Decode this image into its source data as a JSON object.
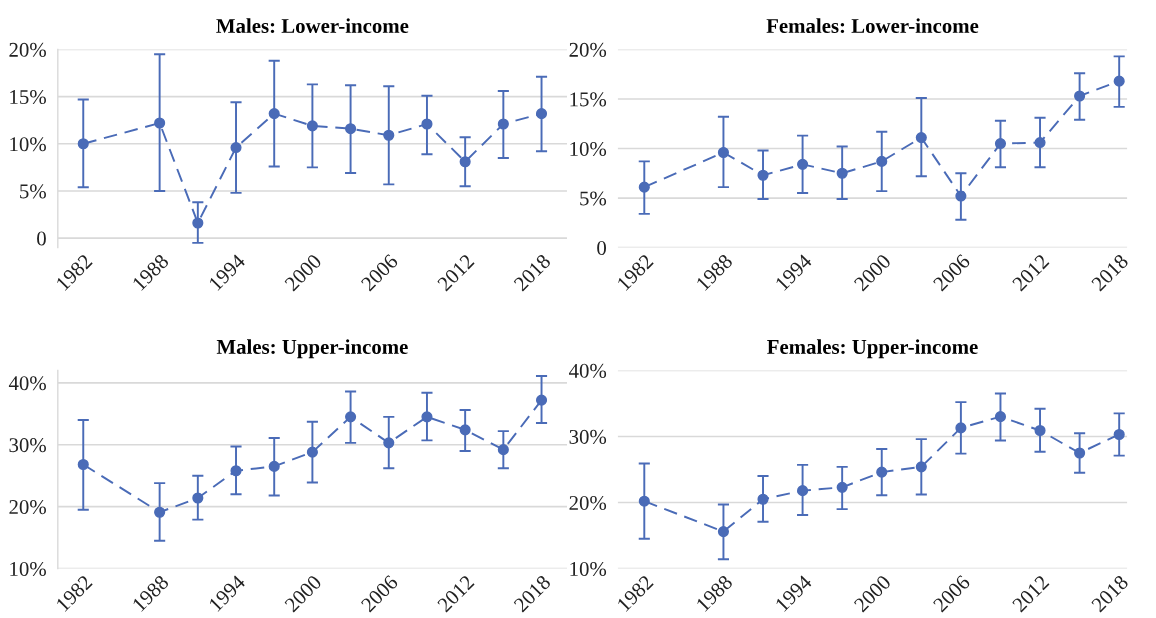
{
  "chart_data": [
    {
      "type": "line",
      "title": "Males: Lower-income",
      "x": [
        1982,
        1988,
        1991,
        1994,
        1997,
        2000,
        2003,
        2006,
        2009,
        2012,
        2015,
        2018
      ],
      "xlim": [
        1980,
        2020
      ],
      "xticks": [
        1982,
        1988,
        1994,
        2000,
        2006,
        2012,
        2018
      ],
      "ylim": [
        -1,
        20
      ],
      "yticks": [
        {
          "value": 0,
          "label": "0"
        },
        {
          "value": 5,
          "label": "5%"
        },
        {
          "value": 10,
          "label": "10%"
        },
        {
          "value": 15,
          "label": "15%"
        },
        {
          "value": 20,
          "label": "20%"
        }
      ],
      "grid": "y",
      "marker": "circle",
      "line_style": "dashed",
      "series": [
        {
          "color": "#4a6bb7",
          "values": [
            10.0,
            12.2,
            1.6,
            9.6,
            13.2,
            11.9,
            11.6,
            10.9,
            12.1,
            8.1,
            12.1,
            13.2
          ],
          "errors": [
            [
              5.4,
              14.7
            ],
            [
              5.0,
              19.5
            ],
            [
              -0.5,
              3.8
            ],
            [
              4.8,
              14.4
            ],
            [
              7.6,
              18.8
            ],
            [
              7.5,
              16.3
            ],
            [
              6.9,
              16.2
            ],
            [
              5.7,
              16.1
            ],
            [
              8.9,
              15.1
            ],
            [
              5.5,
              10.7
            ],
            [
              8.5,
              15.6
            ],
            [
              9.2,
              17.1
            ]
          ]
        }
      ]
    },
    {
      "type": "line",
      "title": "Females: Lower-income",
      "x": [
        1982,
        1988,
        1991,
        1994,
        1997,
        2000,
        2003,
        2006,
        2009,
        2012,
        2015,
        2018
      ],
      "xlim": [
        1980,
        2018.6
      ],
      "xticks": [
        1982,
        1988,
        1994,
        2000,
        2006,
        2012,
        2018
      ],
      "ylim": [
        0,
        20
      ],
      "yticks": [
        {
          "value": 0,
          "label": "0"
        },
        {
          "value": 5,
          "label": "5%"
        },
        {
          "value": 10,
          "label": "10%"
        },
        {
          "value": 15,
          "label": "15%"
        },
        {
          "value": 20,
          "label": "20%"
        }
      ],
      "grid": "y",
      "marker": "circle",
      "line_style": "dashed",
      "series": [
        {
          "color": "#4a6bb7",
          "values": [
            6.1,
            9.6,
            7.3,
            8.4,
            7.5,
            8.7,
            11.1,
            5.2,
            10.5,
            10.6,
            15.3,
            16.8
          ],
          "errors": [
            [
              3.4,
              8.7
            ],
            [
              6.1,
              13.2
            ],
            [
              4.9,
              9.8
            ],
            [
              5.5,
              11.3
            ],
            [
              4.9,
              10.2
            ],
            [
              5.7,
              11.7
            ],
            [
              7.2,
              15.1
            ],
            [
              2.8,
              7.5
            ],
            [
              8.1,
              12.8
            ],
            [
              8.1,
              13.1
            ],
            [
              12.9,
              17.6
            ],
            [
              14.2,
              19.3
            ]
          ]
        }
      ]
    },
    {
      "type": "line",
      "title": "Males: Upper-income",
      "x": [
        1982,
        1988,
        1991,
        1994,
        1997,
        2000,
        2003,
        2006,
        2009,
        2012,
        2015,
        2018
      ],
      "xlim": [
        1980,
        2020
      ],
      "xticks": [
        1982,
        1988,
        1994,
        2000,
        2006,
        2012,
        2018
      ],
      "ylim": [
        10,
        42
      ],
      "yticks": [
        {
          "value": 10,
          "label": "10%"
        },
        {
          "value": 20,
          "label": "20%"
        },
        {
          "value": 30,
          "label": "30%"
        },
        {
          "value": 40,
          "label": "40%"
        }
      ],
      "grid": "y",
      "marker": "circle",
      "line_style": "dashed",
      "series": [
        {
          "color": "#4a6bb7",
          "values": [
            26.8,
            19.1,
            21.4,
            25.8,
            26.5,
            28.8,
            34.5,
            30.3,
            34.5,
            32.4,
            29.2,
            37.2
          ],
          "errors": [
            [
              19.5,
              34.0
            ],
            [
              14.5,
              23.8
            ],
            [
              17.9,
              25.0
            ],
            [
              22.0,
              29.7
            ],
            [
              21.8,
              31.1
            ],
            [
              23.9,
              33.7
            ],
            [
              30.3,
              38.6
            ],
            [
              26.2,
              34.5
            ],
            [
              30.7,
              38.4
            ],
            [
              29.0,
              35.6
            ],
            [
              26.2,
              32.2
            ],
            [
              33.5,
              41.1
            ]
          ]
        }
      ]
    },
    {
      "type": "line",
      "title": "Females: Upper-income",
      "x": [
        1982,
        1988,
        1991,
        1994,
        1997,
        2000,
        2003,
        2006,
        2009,
        2012,
        2015,
        2018
      ],
      "xlim": [
        1980,
        2018.6
      ],
      "xticks": [
        1982,
        1988,
        1994,
        2000,
        2006,
        2012,
        2018
      ],
      "ylim": [
        10,
        40
      ],
      "yticks": [
        {
          "value": 10,
          "label": "10%"
        },
        {
          "value": 20,
          "label": "20%"
        },
        {
          "value": 30,
          "label": "30%"
        },
        {
          "value": 40,
          "label": "40%"
        }
      ],
      "grid": "y",
      "marker": "circle",
      "line_style": "dashed",
      "series": [
        {
          "color": "#4a6bb7",
          "values": [
            20.2,
            15.6,
            20.5,
            21.8,
            22.3,
            24.6,
            25.4,
            31.3,
            33.0,
            30.9,
            27.5,
            30.3
          ],
          "errors": [
            [
              14.5,
              25.9
            ],
            [
              11.4,
              19.7
            ],
            [
              17.1,
              24.0
            ],
            [
              18.1,
              25.7
            ],
            [
              19.0,
              25.4
            ],
            [
              21.1,
              28.1
            ],
            [
              21.2,
              29.6
            ],
            [
              27.4,
              35.2
            ],
            [
              29.4,
              36.5
            ],
            [
              27.7,
              34.2
            ],
            [
              24.5,
              30.5
            ],
            [
              27.1,
              33.5
            ]
          ]
        }
      ]
    }
  ]
}
